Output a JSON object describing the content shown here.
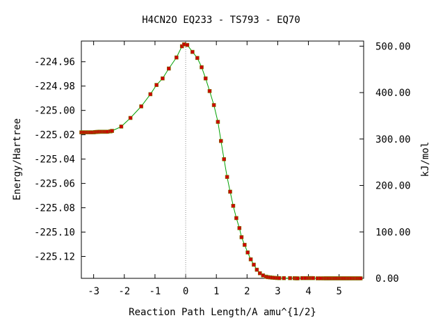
{
  "chart_data": {
    "type": "line",
    "title": "H4CN2O   EQ233 - TS793 - EQ70",
    "xlabel": "Reaction Path Length/A amu^{1/2}",
    "ylabel": "Energy/Hartree",
    "y2label": "kJ/mol",
    "xlim": [
      -3.4,
      5.8
    ],
    "ylim": [
      -225.138,
      -224.943
    ],
    "y2lim": [
      0,
      511
    ],
    "xticks": [
      "-3",
      "-2",
      "-1",
      "0",
      "1",
      "2",
      "3",
      "4",
      "5"
    ],
    "xtick_values": [
      -3,
      -2,
      -1,
      0,
      1,
      2,
      3,
      4,
      5
    ],
    "yticks": [
      "-224.96",
      "-224.98",
      "-225.00",
      "-225.02",
      "-225.04",
      "-225.06",
      "-225.08",
      "-225.10",
      "-225.12"
    ],
    "ytick_values": [
      -224.96,
      -224.98,
      -225.0,
      -225.02,
      -225.04,
      -225.06,
      -225.08,
      -225.1,
      -225.12
    ],
    "y2ticks": [
      "500.00",
      "400.00",
      "300.00",
      "200.00",
      "100.00",
      "0.00"
    ],
    "y2tick_values": [
      500,
      400,
      300,
      200,
      100,
      0
    ],
    "ts_line_x": 0,
    "line_color": "#00a000",
    "marker_color": "#cc0000",
    "series": [
      {
        "x": [
          -3.4,
          -3.35,
          -3.3,
          -3.25,
          -3.2,
          -3.15,
          -3.1,
          -3.05,
          -3.0,
          -2.95,
          -2.9,
          -2.85,
          -2.8,
          -2.75,
          -2.7,
          -2.65,
          -2.6,
          -2.55,
          -2.45,
          -2.4,
          -2.1,
          -1.8,
          -1.45,
          -1.15,
          -0.95,
          -0.75,
          -0.55,
          -0.3,
          -0.12,
          -0.05,
          0.05,
          0.22,
          0.38,
          0.52,
          0.65,
          0.78,
          0.92,
          1.05,
          1.15,
          1.25,
          1.35,
          1.45,
          1.55,
          1.65,
          1.75,
          1.82,
          1.92,
          2.02,
          2.12,
          2.22,
          2.32,
          2.42,
          2.52,
          2.62,
          2.68,
          2.75,
          2.82,
          2.9,
          2.98,
          3.05,
          3.2,
          3.4,
          3.55,
          3.6,
          3.65,
          3.8,
          3.9,
          4.0,
          4.05,
          4.1,
          4.15,
          4.3,
          4.4,
          4.5,
          4.55,
          4.6,
          4.65,
          4.7,
          4.75,
          4.8,
          4.85,
          4.9,
          4.95,
          5.0,
          5.05,
          5.1,
          5.15,
          5.2,
          5.25,
          5.3,
          5.35,
          5.4,
          5.45,
          5.5,
          5.55,
          5.6,
          5.65,
          5.7
        ],
        "y": [
          -225.018,
          -225.018,
          -225.018,
          -225.018,
          -225.018,
          -225.018,
          -225.018,
          -225.018,
          -225.018,
          -225.0178,
          -225.0177,
          -225.0176,
          -225.0175,
          -225.0175,
          -225.0175,
          -225.0175,
          -225.0175,
          -225.0175,
          -225.0172,
          -225.0168,
          -225.0133,
          -225.0062,
          -224.9967,
          -224.9867,
          -224.9791,
          -224.9737,
          -224.9656,
          -224.9565,
          -224.9473,
          -224.9457,
          -224.9462,
          -224.9519,
          -224.9569,
          -224.9645,
          -224.9737,
          -224.9841,
          -224.9956,
          -225.0094,
          -225.0251,
          -225.0401,
          -225.0547,
          -225.0668,
          -225.0784,
          -225.0885,
          -225.0967,
          -225.1042,
          -225.1105,
          -225.1167,
          -225.1224,
          -225.1268,
          -225.1309,
          -225.1338,
          -225.1356,
          -225.1366,
          -225.137,
          -225.1372,
          -225.1374,
          -225.1376,
          -225.1377,
          -225.1378,
          -225.1378,
          -225.1378,
          -225.1379,
          -225.138,
          -225.138,
          -225.1378,
          -225.1378,
          -225.1378,
          -225.1378,
          -225.1378,
          -225.1378,
          -225.138,
          -225.138,
          -225.138,
          -225.138,
          -225.138,
          -225.138,
          -225.138,
          -225.138,
          -225.138,
          -225.138,
          -225.138,
          -225.138,
          -225.138,
          -225.138,
          -225.138,
          -225.138,
          -225.138,
          -225.138,
          -225.138,
          -225.138,
          -225.138,
          -225.138,
          -225.138,
          -225.138,
          -225.138,
          -225.138,
          -225.138
        ]
      }
    ]
  }
}
